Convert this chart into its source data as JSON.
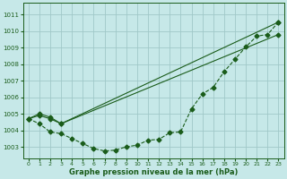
{
  "title": "Graphe pression niveau de la mer (hPa)",
  "bg_color": "#c6e8e8",
  "grid_color": "#a0c8c8",
  "line_color": "#1a5c1a",
  "xlim": [
    -0.5,
    23.5
  ],
  "ylim": [
    1002.3,
    1011.7
  ],
  "yticks": [
    1003,
    1004,
    1005,
    1006,
    1007,
    1008,
    1009,
    1010,
    1011
  ],
  "xticks": [
    0,
    1,
    2,
    3,
    4,
    5,
    6,
    7,
    8,
    9,
    10,
    11,
    12,
    13,
    14,
    15,
    16,
    17,
    18,
    19,
    20,
    21,
    22,
    23
  ],
  "curve_x": [
    0,
    1,
    2,
    3,
    4,
    5,
    6,
    7,
    8,
    9,
    10,
    11,
    12,
    13,
    14,
    15,
    16,
    17,
    18,
    19,
    20,
    21,
    22,
    23
  ],
  "curve_y": [
    1004.7,
    1004.4,
    1003.9,
    1003.8,
    1003.5,
    1003.2,
    1002.9,
    1002.75,
    1002.8,
    1003.0,
    1003.1,
    1003.4,
    1003.45,
    1003.85,
    1003.9,
    1005.3,
    1006.2,
    1006.6,
    1007.55,
    1008.3,
    1009.05,
    1009.7,
    1009.8,
    1010.55
  ],
  "line1_x": [
    0,
    1,
    2,
    3,
    23
  ],
  "line1_y": [
    1004.7,
    1004.9,
    1004.7,
    1004.4,
    1010.55
  ],
  "line2_x": [
    0,
    1,
    2,
    3,
    23
  ],
  "line2_y": [
    1004.7,
    1005.0,
    1004.8,
    1004.4,
    1009.8
  ]
}
